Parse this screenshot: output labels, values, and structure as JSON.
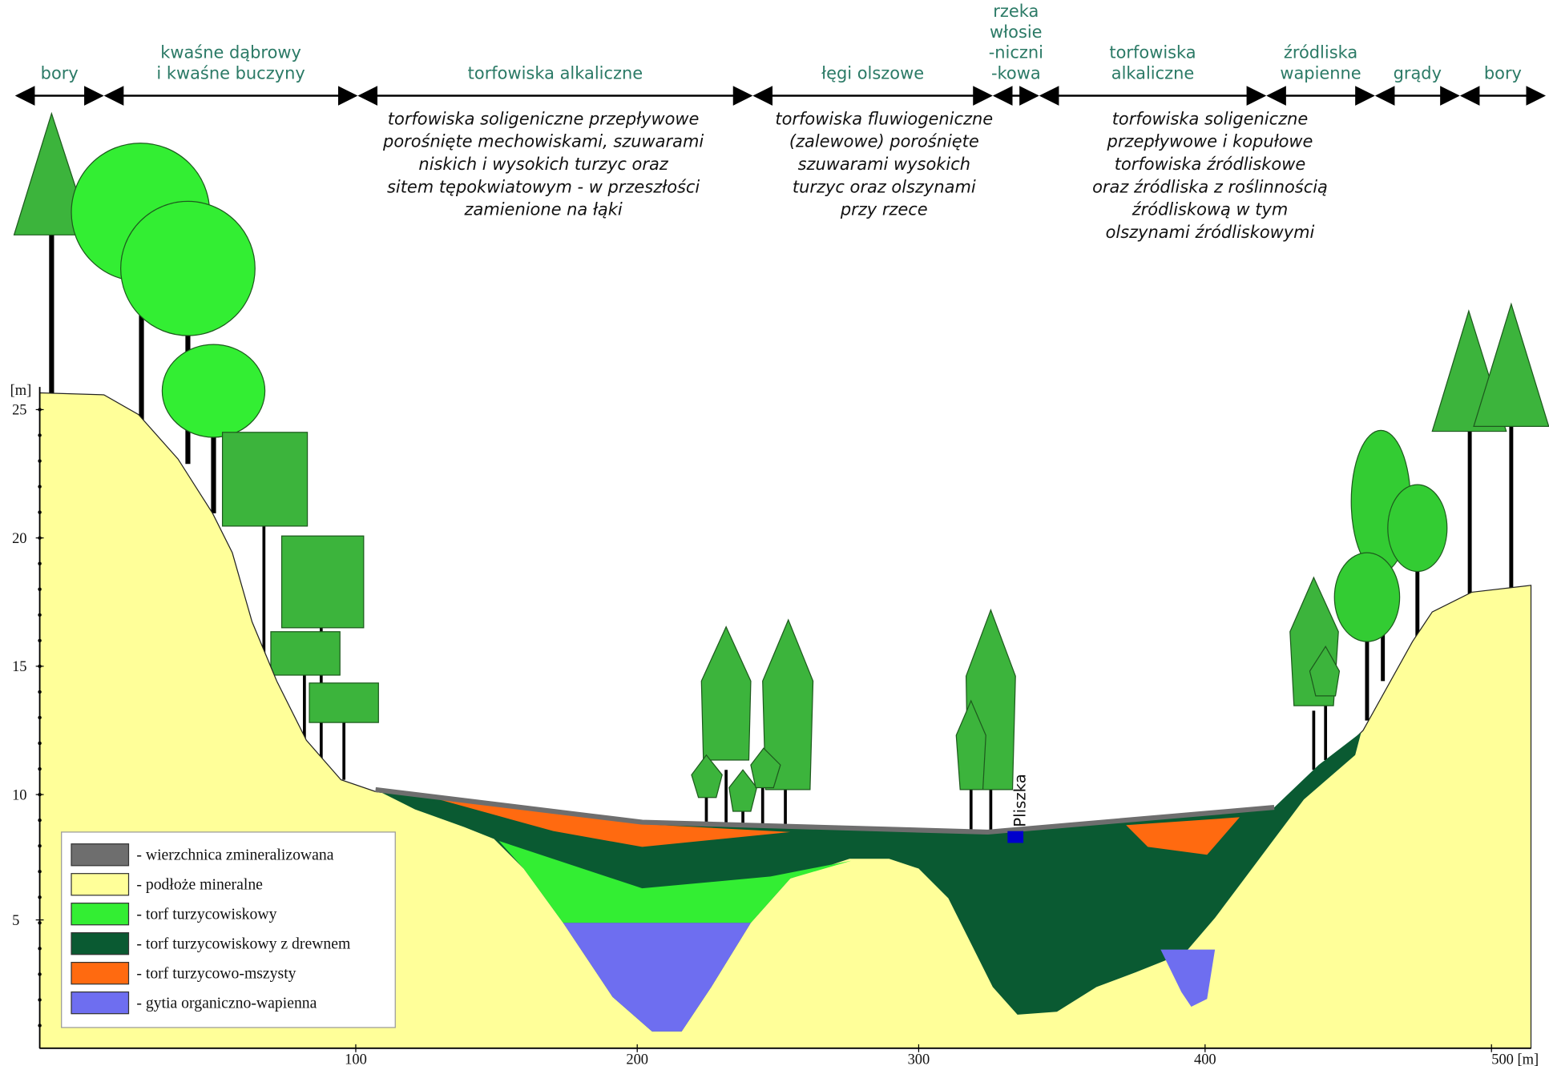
{
  "zones": [
    {
      "lines": [
        "bory"
      ]
    },
    {
      "lines": [
        "kwaśne dąbrowy",
        "i kwaśne buczyny"
      ]
    },
    {
      "lines": [
        "torfowiska alkaliczne"
      ]
    },
    {
      "lines": [
        "łęgi olszowe"
      ]
    },
    {
      "lines": [
        "rzeka",
        "włosie",
        "-niczni",
        "-kowa"
      ]
    },
    {
      "lines": [
        "torfowiska",
        "alkaliczne"
      ]
    },
    {
      "lines": [
        "źródliska",
        "wapienne"
      ]
    },
    {
      "lines": [
        "grądy"
      ]
    },
    {
      "lines": [
        "bory"
      ]
    }
  ],
  "descriptions": [
    {
      "lines": [
        "torfowiska soligeniczne przepływowe",
        "porośnięte mechowiskami, szuwarami",
        "niskich i wysokich turzyc oraz",
        "sitem tępokwiatowym - w przeszłości",
        "zamienione na łąki"
      ]
    },
    {
      "lines": [
        "torfowiska fluwiogeniczne",
        "(zalewowe) porośnięte",
        "szuwarami wysokich",
        "turzyc oraz olszynami",
        "przy rzece"
      ]
    },
    {
      "lines": [
        "torfowiska soligeniczne",
        "przepływowe i kopułowe",
        "torfowiska źródliskowe",
        "oraz źródliska z roślinnością",
        "źródliskową w tym",
        "olszynami źródliskowymi"
      ]
    }
  ],
  "y_axis": {
    "unit": "[m]",
    "ticks": [
      "25",
      "20",
      "15",
      "10",
      "5"
    ]
  },
  "x_axis": {
    "ticks": [
      "100",
      "200",
      "300",
      "400",
      "500 [m]"
    ]
  },
  "river": "Pliszka",
  "legend": [
    {
      "label": "- wierzchnica zmineralizowana",
      "color": "#6e6e6e"
    },
    {
      "label": "- podłoże mineralne",
      "color": "#ffff99"
    },
    {
      "label": "- torf turzycowiskowy",
      "color": "#33ee33"
    },
    {
      "label": "- torf turzycowiskowy z drewnem",
      "color": "#0a5a32"
    },
    {
      "label": "- torf turzycowo-mszysty",
      "color": "#ff6a10"
    },
    {
      "label": "- gytia organiczno-wapienna",
      "color": "#6e6ef0"
    }
  ]
}
